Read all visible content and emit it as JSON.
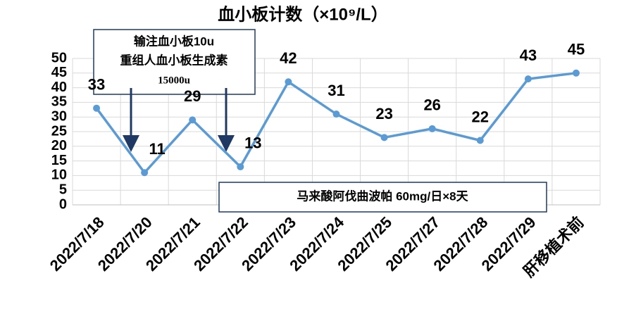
{
  "chart_data": {
    "type": "line",
    "title": "血小板计数（×10⁹/L）",
    "categories": [
      "2022/7/18",
      "2022/7/20",
      "2022/7/21",
      "2022/7/22",
      "2022/7/23",
      "2022/7/24",
      "2022/7/25",
      "2022/7/27",
      "2022/7/28",
      "2022/7/29",
      "肝移植术前"
    ],
    "series": [
      {
        "name": "血小板计数",
        "color": "#5b9bd5",
        "values": [
          33,
          11,
          29,
          13,
          42,
          31,
          23,
          26,
          22,
          43,
          45
        ]
      }
    ],
    "ylim": [
      0,
      50
    ],
    "yticks": [
      0,
      5,
      10,
      15,
      20,
      25,
      30,
      35,
      40,
      45,
      50
    ],
    "grid": true,
    "annotations": [
      {
        "lines": [
          "输注血小板10u",
          "重组人血小板生成素",
          "15000u"
        ]
      },
      {
        "lines": [
          "马来酸阿伐曲波帕 60mg/日×8天"
        ]
      }
    ]
  }
}
